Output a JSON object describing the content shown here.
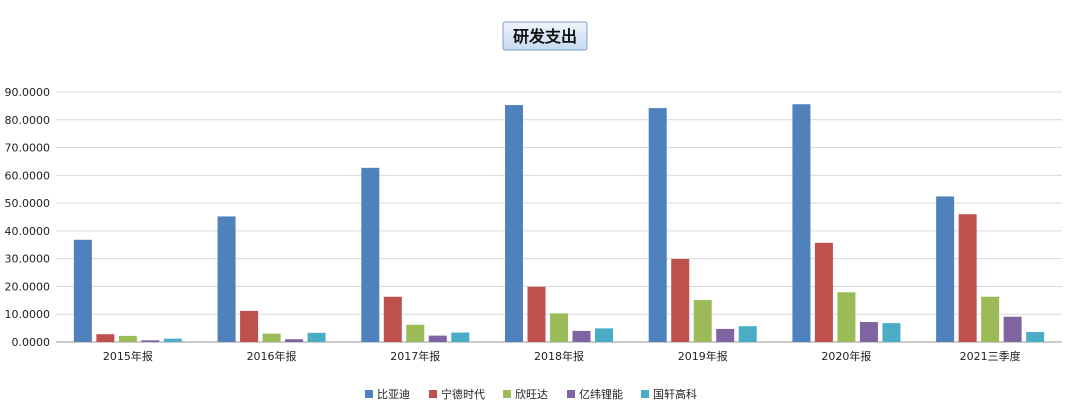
{
  "chart_data": {
    "type": "bar",
    "title": "研发支出",
    "categories": [
      "2015年报",
      "2016年报",
      "2017年报",
      "2018年报",
      "2019年报",
      "2020年报",
      "2021三季度"
    ],
    "series": [
      {
        "name": "比亚迪",
        "color": "#4F81BD",
        "values": [
          36.8,
          45.2,
          62.7,
          85.3,
          84.2,
          85.6,
          52.4
        ]
      },
      {
        "name": "宁德时代",
        "color": "#C0504D",
        "values": [
          2.8,
          11.2,
          16.3,
          19.9,
          29.9,
          35.7,
          46.0
        ]
      },
      {
        "name": "欣旺达",
        "color": "#9BBB59",
        "values": [
          2.2,
          3.0,
          6.2,
          10.3,
          15.1,
          17.9,
          16.3
        ]
      },
      {
        "name": "亿纬锂能",
        "color": "#8064A2",
        "values": [
          0.6,
          1.0,
          2.3,
          4.0,
          4.7,
          7.2,
          9.1
        ]
      },
      {
        "name": "国轩高科",
        "color": "#4BACC6",
        "values": [
          1.2,
          3.3,
          3.4,
          4.9,
          5.7,
          6.8,
          3.6
        ]
      }
    ],
    "yticks": [
      "0.0000",
      "10.0000",
      "20.0000",
      "30.0000",
      "40.0000",
      "50.0000",
      "60.0000",
      "70.0000",
      "80.0000",
      "90.0000"
    ],
    "ylim": [
      0,
      90
    ],
    "grid": true,
    "legend": "bottom"
  }
}
